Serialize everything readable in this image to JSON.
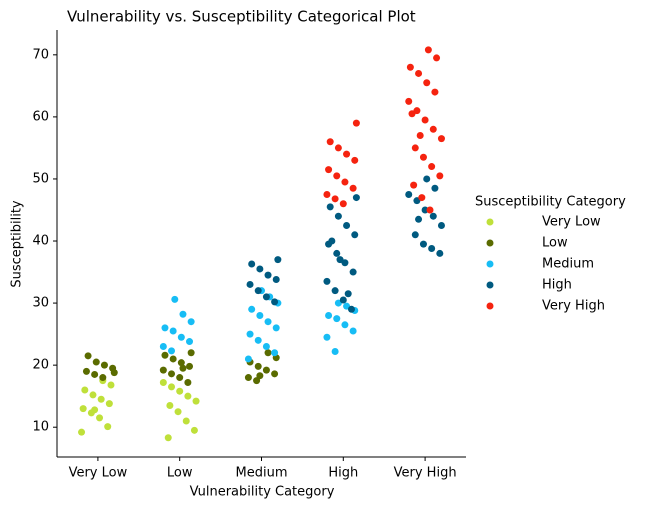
{
  "chart_data": {
    "type": "strip",
    "title": "Vulnerability vs. Susceptibility Categorical Plot",
    "x_label": "Vulnerability Category",
    "y_label": "Susceptibility",
    "legend_title": "Susceptibility Category",
    "categories": [
      "Very Low",
      "Low",
      "Medium",
      "High",
      "Very High"
    ],
    "ylim": [
      5.2,
      74
    ],
    "yticks": [
      10,
      20,
      30,
      40,
      50,
      60,
      70
    ],
    "series": [
      {
        "name": "Very Low",
        "color": "#bfe03a",
        "x": [
          "Very Low",
          "Very Low",
          "Very Low",
          "Very Low",
          "Very Low",
          "Very Low",
          "Very Low",
          "Very Low",
          "Very Low",
          "Very Low",
          "Very Low",
          "Very Low",
          "Low",
          "Low",
          "Low",
          "Low",
          "Low",
          "Low",
          "Low",
          "Low",
          "Low",
          "Low"
        ],
        "values": [
          9.2,
          10.1,
          11.5,
          12.3,
          13.0,
          13.8,
          14.5,
          15.2,
          16.0,
          16.8,
          17.5,
          12.8,
          8.3,
          9.5,
          11.0,
          12.5,
          13.5,
          14.2,
          15.0,
          15.8,
          16.5,
          17.2
        ]
      },
      {
        "name": "Low",
        "color": "#5a6b00",
        "x": [
          "Very Low",
          "Very Low",
          "Very Low",
          "Very Low",
          "Very Low",
          "Very Low",
          "Very Low",
          "Very Low",
          "Low",
          "Low",
          "Low",
          "Low",
          "Low",
          "Low",
          "Low",
          "Low",
          "Low",
          "Low",
          "Medium",
          "Medium",
          "Medium",
          "Medium",
          "Medium",
          "Medium",
          "Medium",
          "Medium",
          "Medium"
        ],
        "values": [
          18.0,
          18.5,
          19.0,
          19.5,
          20.0,
          20.5,
          21.5,
          18.8,
          17.2,
          18.0,
          18.6,
          19.2,
          19.8,
          20.4,
          21.0,
          21.6,
          22.0,
          19.5,
          17.5,
          18.0,
          18.6,
          19.2,
          19.8,
          20.5,
          21.2,
          22.0,
          18.3
        ]
      },
      {
        "name": "Medium",
        "color": "#17bdf5",
        "x": [
          "Low",
          "Low",
          "Low",
          "Low",
          "Low",
          "Low",
          "Low",
          "Low",
          "Low",
          "Medium",
          "Medium",
          "Medium",
          "Medium",
          "Medium",
          "Medium",
          "Medium",
          "Medium",
          "Medium",
          "Medium",
          "Medium",
          "Medium",
          "High",
          "High",
          "High",
          "High",
          "High",
          "High",
          "High",
          "High",
          "High"
        ],
        "values": [
          22.3,
          23.0,
          23.8,
          24.5,
          25.5,
          26.0,
          27.0,
          28.2,
          30.6,
          21.0,
          22.0,
          23.0,
          24.0,
          25.0,
          26.0,
          27.0,
          28.0,
          29.0,
          30.0,
          31.0,
          32.0,
          22.2,
          24.5,
          25.5,
          26.5,
          27.5,
          28.0,
          28.8,
          29.5,
          30.0
        ]
      },
      {
        "name": "High",
        "color": "#005a80",
        "x": [
          "Medium",
          "Medium",
          "Medium",
          "Medium",
          "Medium",
          "Medium",
          "Medium",
          "Medium",
          "Medium",
          "High",
          "High",
          "High",
          "High",
          "High",
          "High",
          "High",
          "High",
          "High",
          "High",
          "High",
          "High",
          "High",
          "High",
          "High",
          "High",
          "Very High",
          "Very High",
          "Very High",
          "Very High",
          "Very High",
          "Very High",
          "Very High",
          "Very High",
          "Very High",
          "Very High",
          "Very High",
          "Very High"
        ],
        "values": [
          30.2,
          31.0,
          32.0,
          33.0,
          33.8,
          34.5,
          35.5,
          36.3,
          37.0,
          29.0,
          30.5,
          32.0,
          33.5,
          35.0,
          36.5,
          38.0,
          39.5,
          41.0,
          42.5,
          44.0,
          45.5,
          47.0,
          31.5,
          37.0,
          40.0,
          38.0,
          38.8,
          39.5,
          41.0,
          42.5,
          44.0,
          45.0,
          46.5,
          47.5,
          48.5,
          50.0,
          43.5
        ]
      },
      {
        "name": "Very High",
        "color": "#f5230f",
        "x": [
          "High",
          "High",
          "High",
          "High",
          "High",
          "High",
          "High",
          "High",
          "High",
          "High",
          "High",
          "High",
          "Very High",
          "Very High",
          "Very High",
          "Very High",
          "Very High",
          "Very High",
          "Very High",
          "Very High",
          "Very High",
          "Very High",
          "Very High",
          "Very High",
          "Very High",
          "Very High",
          "Very High",
          "Very High",
          "Very High",
          "Very High",
          "Very High",
          "Very High"
        ],
        "values": [
          46.0,
          46.8,
          47.5,
          48.5,
          49.5,
          50.5,
          51.5,
          53.0,
          54.0,
          55.0,
          56.0,
          59.0,
          45.0,
          47.0,
          49.0,
          50.5,
          52.0,
          53.5,
          55.0,
          56.5,
          58.0,
          59.5,
          61.0,
          62.5,
          64.0,
          65.5,
          67.0,
          68.0,
          69.5,
          70.8,
          57.0,
          60.5
        ]
      }
    ]
  }
}
